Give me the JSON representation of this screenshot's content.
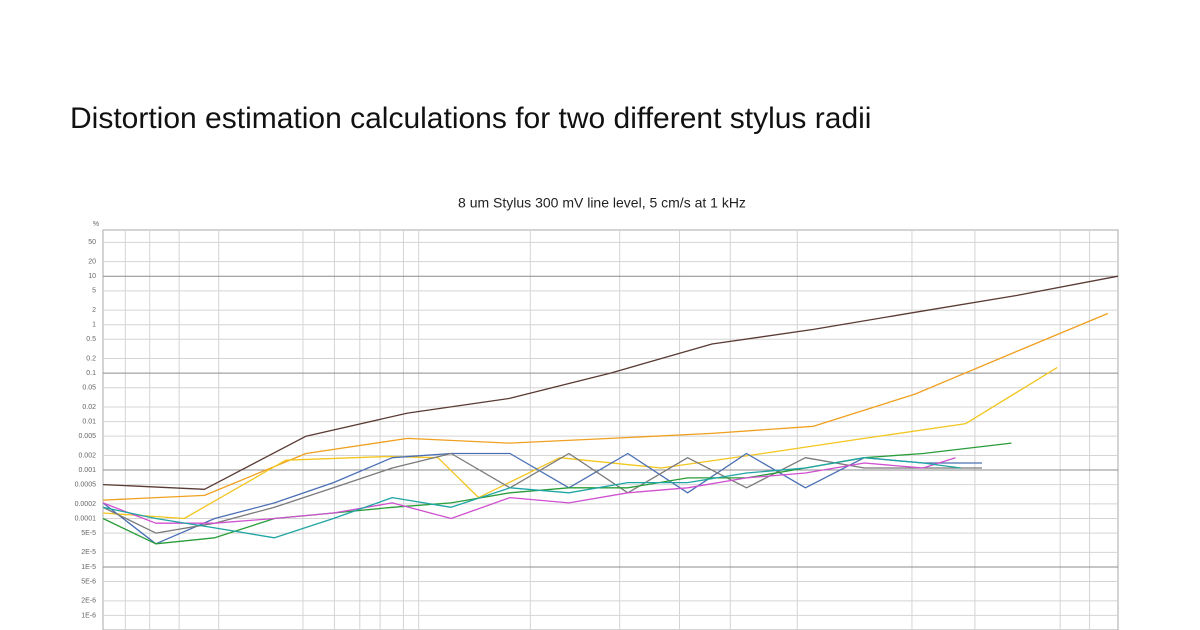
{
  "title": "Distortion estimation calculations for two different stylus radii",
  "chart_data": {
    "type": "line",
    "title": "8 um Stylus 300 mV line level, 5 cm/s at 1 kHz",
    "ylabel": "%",
    "ylog": true,
    "grid": true,
    "ylim": [
      5e-07,
      90
    ],
    "yticks": [
      50,
      20,
      10,
      5,
      2,
      1,
      0.5,
      0.2,
      0.1,
      0.05,
      0.02,
      0.01,
      0.005,
      0.002,
      0.001,
      0.0005,
      0.0002,
      0.0001,
      {
        "value": 5e-05,
        "label": "5E-5"
      },
      {
        "value": 2e-05,
        "label": "2E-5"
      },
      {
        "value": 1e-05,
        "label": "1E-5"
      },
      {
        "value": 5e-06,
        "label": "5E-6"
      },
      {
        "value": 2e-06,
        "label": "2E-6"
      },
      {
        "value": 1e-06,
        "label": "1E-6"
      }
    ],
    "xlim": [
      0,
      100
    ],
    "xticks": [
      2.2,
      4.6,
      7.5,
      11.4,
      19.7,
      22.8,
      25.3,
      27.3,
      29.6,
      31.1,
      42.1,
      50.9,
      56.8,
      61.8,
      68.4,
      79.7,
      85.9,
      94.3,
      97.2
    ],
    "series": [
      {
        "color": "#5a3a34",
        "x": [
          0,
          10,
          20,
          30,
          40,
          50,
          60,
          70,
          80,
          90,
          100
        ],
        "values": [
          0.0005,
          0.0004,
          0.005,
          0.015,
          0.03,
          0.1,
          0.4,
          0.8,
          1.8,
          4,
          10
        ]
      },
      {
        "color": "#f0a020",
        "x": [
          0,
          10,
          20,
          30,
          40,
          50,
          60,
          70,
          80,
          90,
          99
        ],
        "values": [
          0.00024,
          0.0003,
          0.0022,
          0.0045,
          0.0036,
          0.0045,
          0.0057,
          0.008,
          0.037,
          0.28,
          1.7
        ]
      },
      {
        "color": "#f2c61f",
        "x": [
          0,
          8,
          18,
          28,
          33,
          37,
          45,
          55,
          65,
          75,
          85,
          94
        ],
        "values": [
          0.00013,
          0.0001,
          0.0016,
          0.0019,
          0.0018,
          0.00027,
          0.0018,
          0.0011,
          0.0022,
          0.0045,
          0.0091,
          0.13
        ]
      },
      {
        "color": "#4a6fb5",
        "x": [
          0,
          5.2,
          11,
          16.9,
          22.7,
          28.5,
          34.3,
          40.1,
          45.9,
          51.7,
          57.6,
          63.4,
          69.2,
          75,
          80.8,
          86.6
        ],
        "values": [
          0.00021,
          3e-05,
          0.0001,
          0.00021,
          0.00055,
          0.0018,
          0.0022,
          0.0022,
          0.00043,
          0.0022,
          0.00034,
          0.0022,
          0.00043,
          0.0018,
          0.0014,
          0.0014
        ]
      },
      {
        "color": "#7a7a7a",
        "x": [
          0,
          5.2,
          11,
          16.9,
          22.7,
          28.5,
          34.3,
          40.1,
          45.9,
          51.7,
          57.6,
          63.4,
          69.2,
          75,
          80.8,
          86.6
        ],
        "values": [
          0.00017,
          5e-05,
          8e-05,
          0.00017,
          0.00043,
          0.0011,
          0.0022,
          0.00043,
          0.0022,
          0.00034,
          0.0018,
          0.00043,
          0.0018,
          0.0011,
          0.0011,
          0.0011
        ]
      },
      {
        "color": "#2a9d3a",
        "x": [
          0,
          5.2,
          11,
          16.9,
          22.7,
          28.5,
          34.3,
          40.1,
          45.9,
          51.7,
          57.6,
          63.4,
          69.2,
          75,
          80.8,
          89.5
        ],
        "values": [
          0.0001,
          3e-05,
          4e-05,
          0.0001,
          0.00013,
          0.00017,
          0.00021,
          0.00034,
          0.00043,
          0.00043,
          0.00069,
          0.00069,
          0.0011,
          0.0018,
          0.0022,
          0.0036
        ]
      },
      {
        "color": "#d050d0",
        "x": [
          0,
          5.2,
          11,
          16.9,
          22.7,
          28.5,
          34.3,
          40.1,
          45.9,
          51.7,
          57.6,
          63.4,
          69.2,
          75,
          80.8,
          84
        ],
        "values": [
          0.00021,
          8e-05,
          8e-05,
          0.0001,
          0.00013,
          0.00021,
          0.0001,
          0.00027,
          0.00021,
          0.00034,
          0.00043,
          0.00069,
          0.00087,
          0.0014,
          0.0011,
          0.0018
        ]
      },
      {
        "color": "#20a5a5",
        "x": [
          0,
          5.2,
          11,
          16.9,
          22.7,
          28.5,
          34.3,
          40.1,
          45.9,
          51.7,
          57.6,
          63.4,
          69.2,
          75,
          80.8,
          84.5
        ],
        "values": [
          0.00017,
          0.0001,
          6.4e-05,
          4e-05,
          0.0001,
          0.00027,
          0.00017,
          0.00043,
          0.00034,
          0.00055,
          0.00055,
          0.00087,
          0.0011,
          0.0018,
          0.0014,
          0.0011
        ]
      }
    ]
  }
}
